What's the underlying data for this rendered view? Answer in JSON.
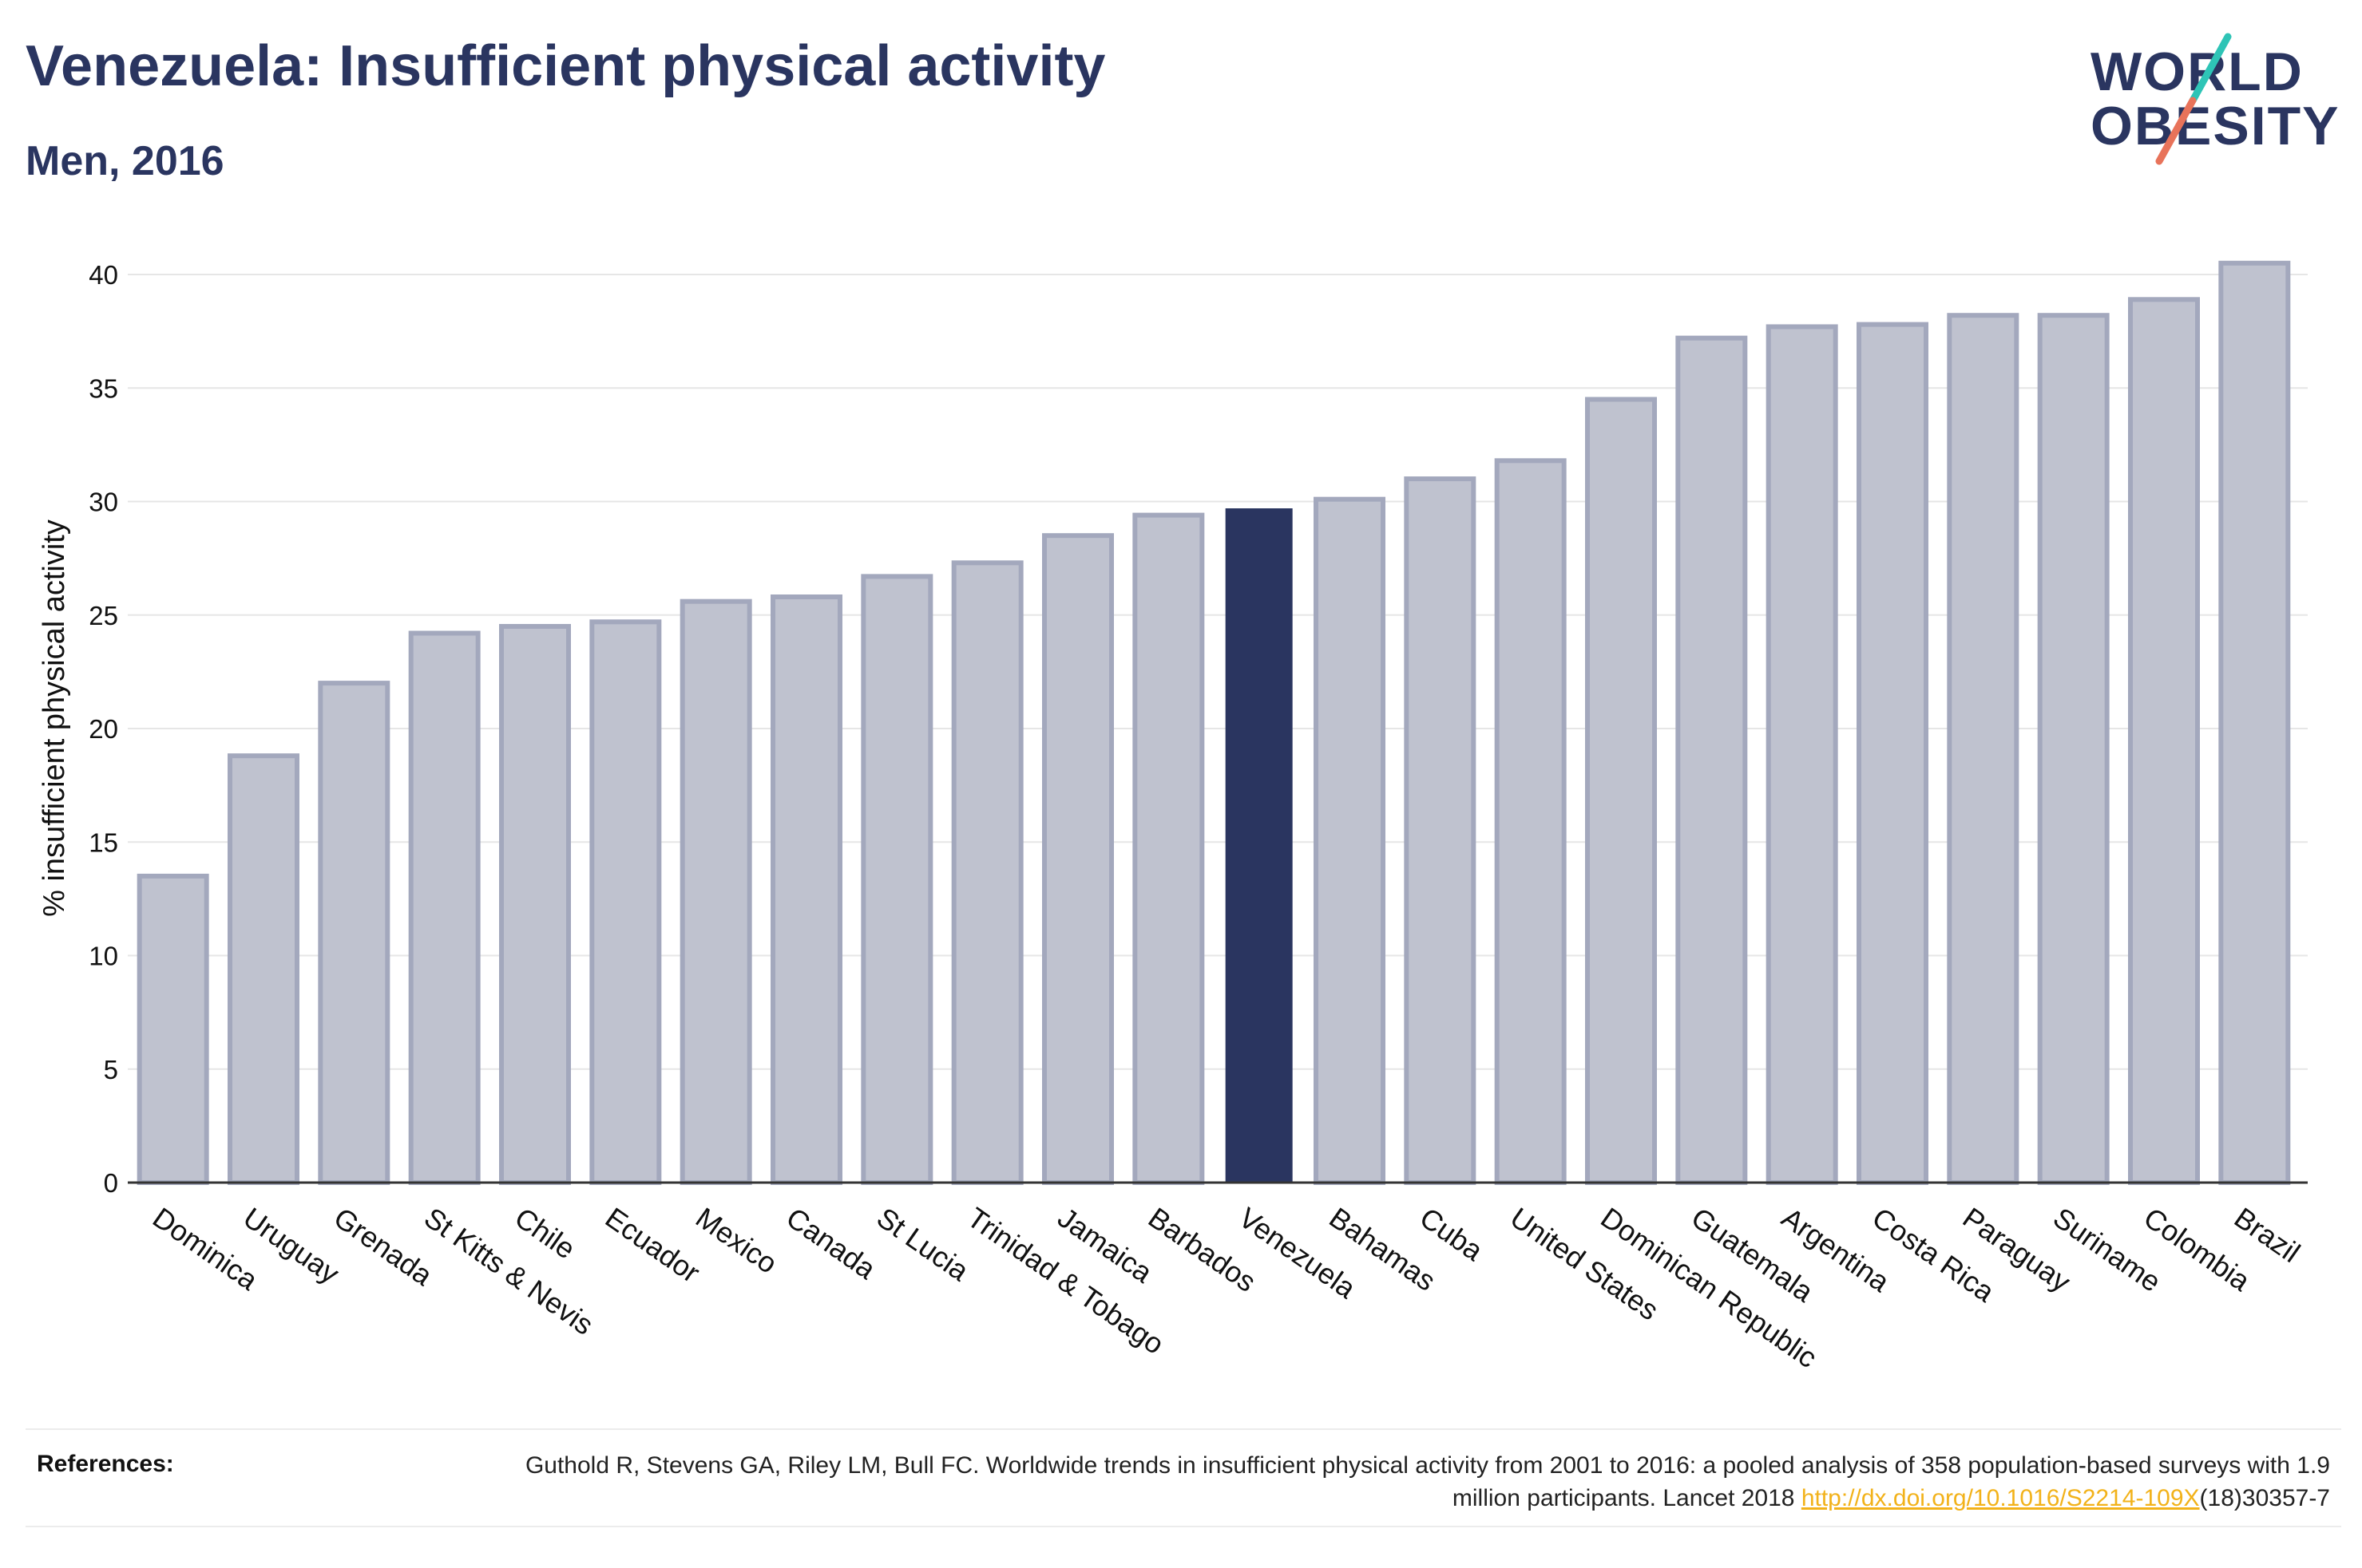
{
  "header": {
    "title": "Venezuela: Insufficient physical activity",
    "subtitle": "Men, 2016"
  },
  "logo": {
    "line1": "WORLD",
    "line2": "OBESITY",
    "accent_teal": "#2ec4b6",
    "accent_coral": "#e8735a"
  },
  "colors": {
    "highlight": "#2a3560",
    "bar_fill": "#bfc2cf",
    "bar_stroke": "#a3a8bd",
    "grid": "#e6e6e6",
    "axis": "#333333"
  },
  "chart_data": {
    "type": "bar",
    "title": "Venezuela: Insufficient physical activity",
    "subtitle": "Men, 2016",
    "xlabel": "",
    "ylabel": "% insufficient physical activity",
    "ylim": [
      0,
      42
    ],
    "yticks": [
      0,
      5,
      10,
      15,
      20,
      25,
      30,
      35,
      40
    ],
    "grid": true,
    "highlight": "Venezuela",
    "categories": [
      "Dominica",
      "Uruguay",
      "Grenada",
      "St Kitts & Nevis",
      "Chile",
      "Ecuador",
      "Mexico",
      "Canada",
      "St Lucia",
      "Trinidad & Tobago",
      "Jamaica",
      "Barbados",
      "Venezuela",
      "Bahamas",
      "Cuba",
      "United States",
      "Dominican Republic",
      "Guatemala",
      "Argentina",
      "Costa Rica",
      "Paraguay",
      "Suriname",
      "Colombia",
      "Brazil"
    ],
    "values": [
      13.5,
      18.8,
      22.0,
      24.2,
      24.5,
      24.7,
      25.6,
      25.8,
      26.7,
      27.3,
      28.5,
      29.4,
      29.7,
      30.1,
      31.0,
      31.8,
      34.5,
      37.2,
      37.7,
      37.8,
      38.2,
      38.2,
      38.9,
      40.5
    ]
  },
  "references": {
    "label": "References:",
    "text_before": "Guthold R, Stevens GA, Riley LM, Bull FC. Worldwide trends in insufficient physical activity from 2001 to 2016: a pooled analysis of 358 population-based surveys with 1.9 million participants. Lancet 2018 ",
    "link": "http://dx.doi.org/10.1016/S2214-109X",
    "text_after": "(18)30357-7"
  }
}
